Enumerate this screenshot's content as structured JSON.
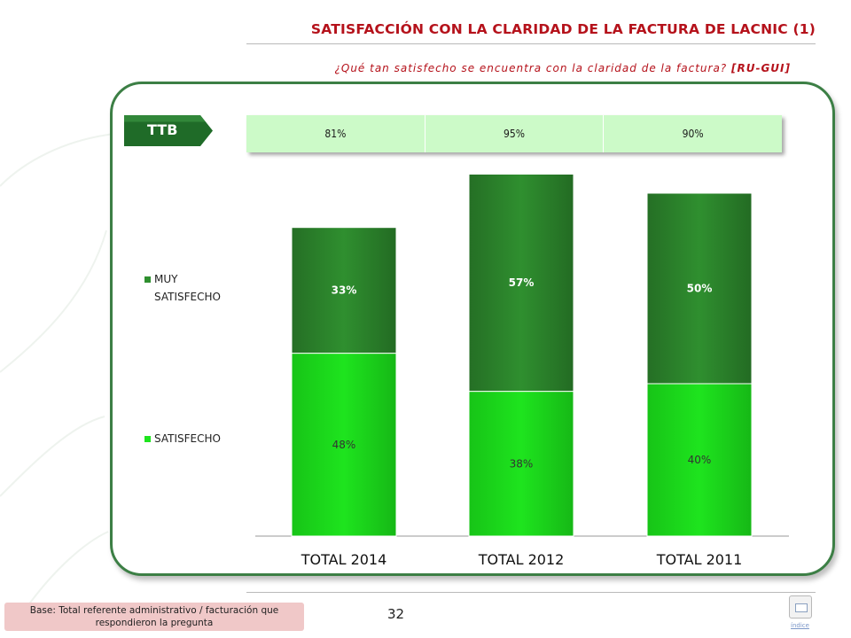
{
  "header": {
    "title": "SATISFACCIÓN CON LA CLARIDAD DE LA FACTURA DE LACNIC (1)",
    "question": "¿Qué tan satisfecho se encuentra con la claridad de la factura?",
    "question_code": "[RU-GUI]"
  },
  "ttb": {
    "label": "TTB",
    "values": [
      "81%",
      "95%",
      "90%"
    ]
  },
  "chart_data": {
    "type": "bar",
    "stacked": true,
    "categories": [
      "TOTAL 2014",
      "TOTAL 2012",
      "TOTAL 2011"
    ],
    "series": [
      {
        "name": "SATISFECHO",
        "values": [
          48,
          38,
          40
        ],
        "labels": [
          "48%",
          "38%",
          "40%"
        ],
        "color": "#1ee41e"
      },
      {
        "name": "MUY SATISFECHO",
        "values": [
          33,
          57,
          50
        ],
        "labels": [
          "33%",
          "57%",
          "50%"
        ],
        "color": "#2f8f2f"
      }
    ],
    "legend_order": [
      "MUY SATISFECHO",
      "SATISFECHO"
    ],
    "legend_position": "left",
    "ylim": [
      0,
      100
    ],
    "grid": false
  },
  "footer": {
    "base_note": "Base: Total referente administrativo / facturación que respondieron la pregunta",
    "page_number": "32",
    "index_label": "índice"
  },
  "colors": {
    "title": "#b5121b",
    "panel_border": "#3c7f45",
    "ttb_fill": "#ccfac8",
    "ttb_tag": "#2e7d32"
  }
}
